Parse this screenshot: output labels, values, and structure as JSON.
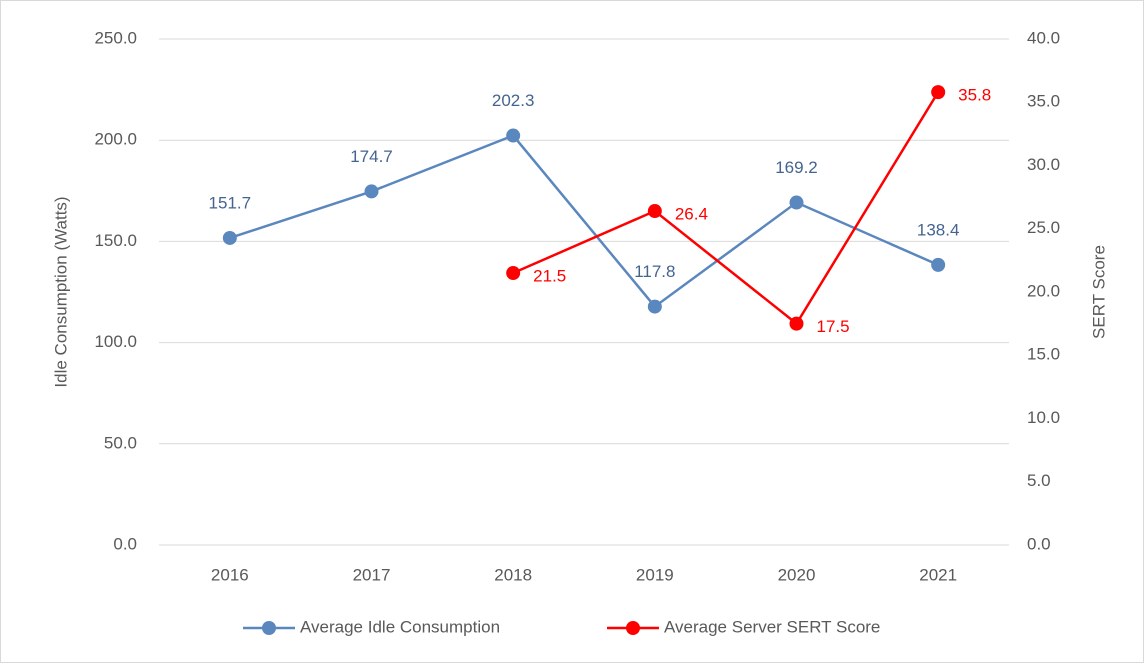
{
  "chart_data": {
    "type": "line",
    "categories": [
      "2016",
      "2017",
      "2018",
      "2019",
      "2020",
      "2021"
    ],
    "series": [
      {
        "name": "Average Idle Consumption",
        "color": "#5b87bf",
        "values": [
          151.7,
          174.7,
          202.3,
          117.8,
          169.2,
          138.4
        ]
      },
      {
        "name": "Average Server SERT Score",
        "color": "#ff0000",
        "axis": "y2",
        "values": [
          null,
          null,
          21.5,
          26.4,
          17.5,
          35.8
        ]
      }
    ],
    "ylabel": "Idle Consumption (Watts)",
    "y2label": "SERT Score",
    "ylim": [
      0,
      250
    ],
    "yticks": [
      {
        "value": 0,
        "label": "0.0"
      },
      {
        "value": 50,
        "label": "50.0"
      },
      {
        "value": 100,
        "label": "100.0"
      },
      {
        "value": 150,
        "label": "150.0"
      },
      {
        "value": 200,
        "label": "200.0"
      },
      {
        "value": 250,
        "label": "250.0"
      }
    ],
    "y2lim": [
      0,
      40
    ],
    "y2ticks": [
      {
        "value": 0,
        "label": "0.0"
      },
      {
        "value": 5,
        "label": "5.0"
      },
      {
        "value": 10,
        "label": "10.0"
      },
      {
        "value": 15,
        "label": "15.0"
      },
      {
        "value": 20,
        "label": "20.0"
      },
      {
        "value": 25,
        "label": "25.0"
      },
      {
        "value": 30,
        "label": "30.0"
      },
      {
        "value": 35,
        "label": "35.0"
      },
      {
        "value": 40,
        "label": "40.0"
      }
    ],
    "grid": true,
    "legend": "bottom"
  }
}
